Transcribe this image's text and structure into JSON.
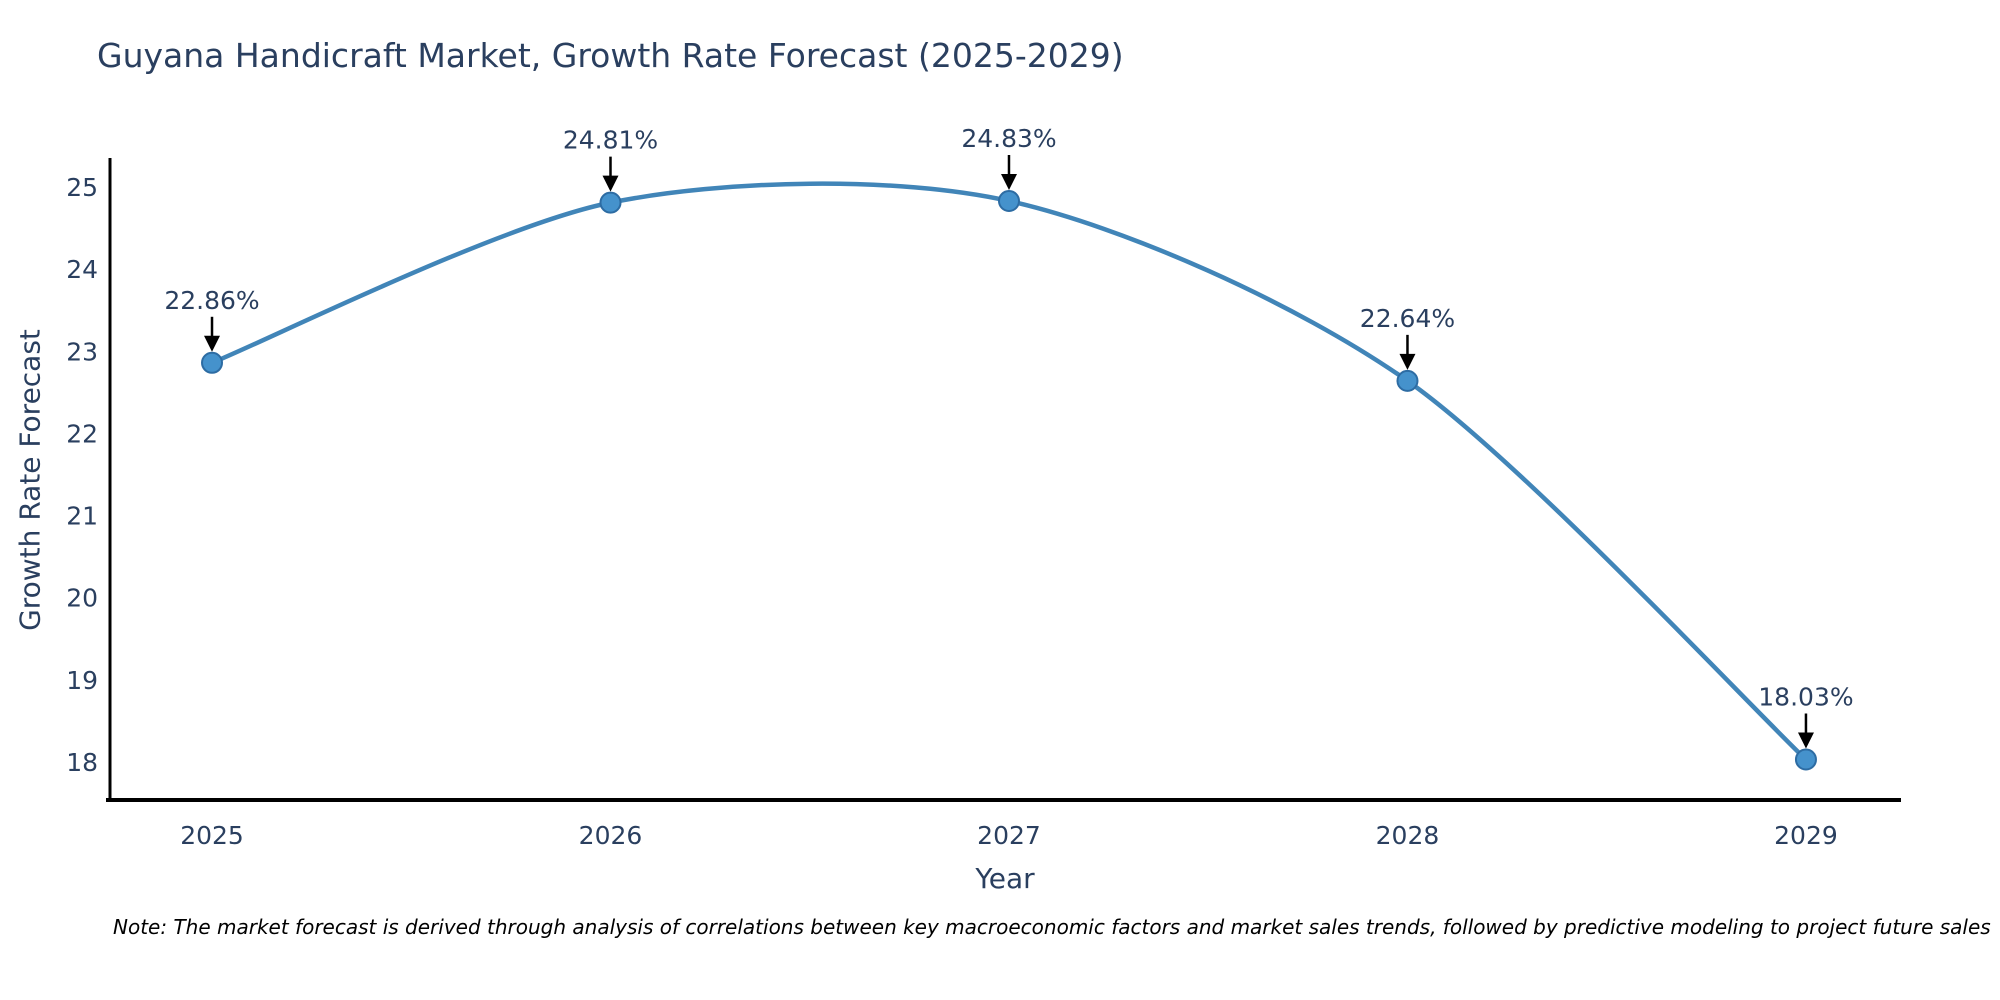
{
  "header": {
    "title": "Guyana Handicraft Market, Growth Rate Forecast (2025-2029)"
  },
  "footnote": "Note: The market forecast is derived through analysis of correlations between key macroeconomic factors and market sales trends, followed by predictive modeling to project future sales",
  "chart_data": {
    "type": "line",
    "title": "Guyana Handicraft Market, Growth Rate Forecast (2025-2029)",
    "xlabel": "Year",
    "ylabel": "Growth Rate Forecast",
    "x": [
      2025,
      2026,
      2027,
      2028,
      2029
    ],
    "series": [
      {
        "name": "Growth Rate Forecast",
        "values": [
          22.86,
          24.81,
          24.83,
          22.64,
          18.03
        ]
      }
    ],
    "point_labels": [
      "22.86%",
      "24.81%",
      "24.83%",
      "22.64%",
      "18.03%"
    ],
    "xticks": [
      2025,
      2026,
      2027,
      2028,
      2029
    ],
    "yticks": [
      18,
      19,
      20,
      21,
      22,
      23,
      24,
      25
    ],
    "xlim": [
      2024.744,
      2029.236
    ],
    "ylim": [
      17.537,
      25.329
    ],
    "grid": false,
    "legend_position": "none",
    "line_shape": "spline",
    "annotations_have_arrows": true,
    "colors": {
      "line": "#4185b8",
      "marker_fill": "#4592cc",
      "marker_stroke": "#2d6ca3",
      "axis_line": "#000000",
      "tick_text": "#2a3f5f",
      "annotation_text": "#2a3f5f",
      "arrow": "#000000",
      "title_text": "#2a3f5f",
      "background": "#ffffff"
    }
  }
}
